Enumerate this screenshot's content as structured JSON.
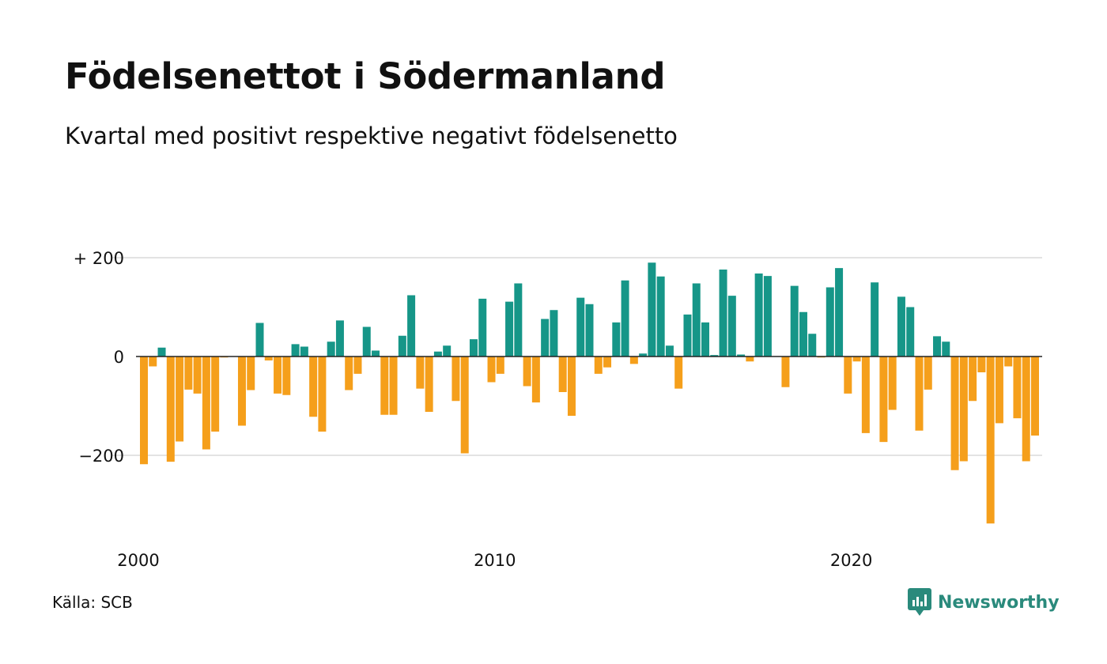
{
  "title": "Födelsenettot i Södermanland",
  "subtitle": "Kvartal med positivt respektive negativt födelsenetto",
  "source": "Källa: SCB",
  "brand": "Newsworthy",
  "colors": {
    "positive": "#169688",
    "negative": "#f59f1b",
    "grid": "#e3e3e3",
    "zero_line": "#222222",
    "brand": "#2a8a7c"
  },
  "chart_data": {
    "type": "bar",
    "ylim": [
      -340,
      200
    ],
    "yticks": [
      {
        "value": 200,
        "label": "+ 200"
      },
      {
        "value": 0,
        "label": "0"
      },
      {
        "value": -200,
        "label": "−200"
      }
    ],
    "x_start": "2000 Q1",
    "xticks": [
      {
        "index": 0,
        "label": "2000"
      },
      {
        "index": 40,
        "label": "2010"
      },
      {
        "index": 80,
        "label": "2020"
      }
    ],
    "values": [
      -218,
      -20,
      18,
      -213,
      -172,
      -67,
      -75,
      -188,
      -152,
      -2,
      0,
      -140,
      -68,
      68,
      -8,
      -75,
      -78,
      25,
      20,
      -122,
      -152,
      30,
      73,
      -68,
      -35,
      60,
      12,
      -118,
      -118,
      42,
      124,
      -65,
      -112,
      10,
      22,
      -90,
      -196,
      35,
      117,
      -52,
      -35,
      111,
      148,
      -60,
      -93,
      76,
      94,
      -72,
      -120,
      119,
      106,
      -35,
      -22,
      69,
      154,
      -15,
      6,
      190,
      162,
      22,
      -65,
      85,
      148,
      69,
      3,
      176,
      123,
      4,
      -10,
      168,
      163,
      0,
      -62,
      143,
      90,
      46,
      -2,
      140,
      179,
      -75,
      -10,
      -155,
      150,
      -173,
      -108,
      121,
      100,
      -150,
      -67,
      41,
      30,
      -230,
      -212,
      -90,
      -32,
      -338,
      -135,
      -20,
      -125,
      -212,
      -160
    ]
  }
}
